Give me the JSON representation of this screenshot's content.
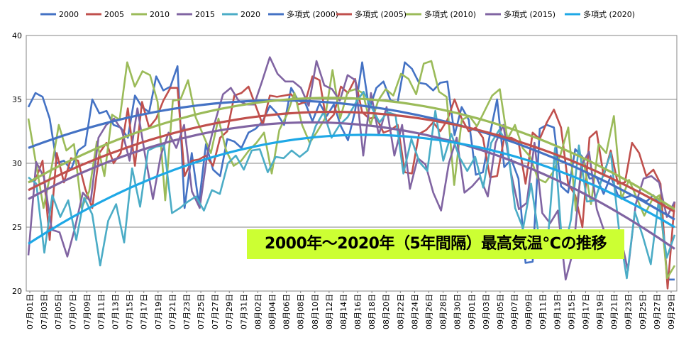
{
  "chart_data": {
    "type": "line",
    "title": "2000年～2020年（5年間隔）最高気温℃の推移",
    "ylim": [
      20,
      40
    ],
    "yticks": [
      "20",
      "25",
      "30",
      "35",
      "40"
    ],
    "grid": true,
    "legend_position": "top",
    "xlabels": [
      "07月01日",
      "07月03日",
      "07月05日",
      "07月07日",
      "07月09日",
      "07月11日",
      "07月13日",
      "07月15日",
      "07月17日",
      "07月19日",
      "07月21日",
      "07月23日",
      "07月25日",
      "07月27日",
      "07月29日",
      "07月31日",
      "08月02日",
      "08月04日",
      "08月06日",
      "08月08日",
      "08月10日",
      "08月12日",
      "08月14日",
      "08月16日",
      "08月18日",
      "08月20日",
      "08月22日",
      "08月24日",
      "08月26日",
      "08月28日",
      "08月30日",
      "09月01日",
      "09月03日",
      "09月05日",
      "09月07日",
      "09月09日",
      "09月11日",
      "09月13日",
      "09月15日",
      "09月17日",
      "09月19日",
      "09月21日",
      "09月23日",
      "09月25日",
      "09月27日",
      "09月29日"
    ],
    "series": [
      {
        "name": "2000",
        "color": "#4472C4",
        "values": [
          34.4,
          35.5,
          35.2,
          33.5,
          30.0,
          30.2,
          29.5,
          31.0,
          31.4,
          35.0,
          33.9,
          34.1,
          33.0,
          32.8,
          32.0,
          35.3,
          34.4,
          34.0,
          36.8,
          35.7,
          36.0,
          37.6,
          26.5,
          30.8,
          26.8,
          31.5,
          29.5,
          29.0,
          31.9,
          31.7,
          31.2,
          32.4,
          32.7,
          33.3,
          34.5,
          33.9,
          33.0,
          35.9,
          34.9,
          34.7,
          33.3,
          34.7,
          33.7,
          34.6,
          32.9,
          31.8,
          34.1,
          37.9,
          34.2,
          35.9,
          36.4,
          34.9,
          34.8,
          37.9,
          37.4,
          36.3,
          36.2,
          35.7,
          36.3,
          36.4,
          32.2,
          34.4,
          33.4,
          29.1,
          29.3,
          32.3,
          35.0,
          29.7,
          30.3,
          28.8,
          22.2,
          22.3,
          32.7,
          33.0,
          32.8,
          28.2,
          27.7,
          31.1,
          30.5,
          28.8,
          28.9,
          27.6,
          29.0,
          27.5,
          27.3,
          27.5,
          27.3,
          27.0,
          27.5,
          26.6,
          20.9,
          20.9
        ]
      },
      {
        "name": "2005",
        "color": "#C0504D",
        "values": [
          28.5,
          28.7,
          30.2,
          24.0,
          30.8,
          28.5,
          30.4,
          30.2,
          28.0,
          26.5,
          30.8,
          31.6,
          30.0,
          30.8,
          34.3,
          29.8,
          34.8,
          32.8,
          33.5,
          34.9,
          35.9,
          35.9,
          29.0,
          30.2,
          30.3,
          30.6,
          29.8,
          32.0,
          32.5,
          35.3,
          35.5,
          36.0,
          34.5,
          33.0,
          35.3,
          35.2,
          35.3,
          35.4,
          34.6,
          34.8,
          36.8,
          36.5,
          33.2,
          33.8,
          36.0,
          35.5,
          36.6,
          34.0,
          33.5,
          33.6,
          32.4,
          32.6,
          33.0,
          29.3,
          29.2,
          32.3,
          32.6,
          33.2,
          32.5,
          33.4,
          35.0,
          33.5,
          32.5,
          32.8,
          32.0,
          28.9,
          29.0,
          32.0,
          32.0,
          31.7,
          28.4,
          32.4,
          31.9,
          33.2,
          34.2,
          32.8,
          28.4,
          27.5,
          25.0,
          32.0,
          32.5,
          29.0,
          31.0,
          28.4,
          28.5,
          31.6,
          30.8,
          29.0,
          29.5,
          28.4,
          20.2,
          27.0
        ]
      },
      {
        "name": "2010",
        "color": "#9BBB59",
        "values": [
          33.5,
          30.0,
          26.5,
          29.5,
          33.0,
          31.0,
          31.5,
          26.5,
          27.8,
          31.7,
          29.0,
          33.8,
          33.4,
          37.9,
          36.0,
          37.2,
          36.9,
          34.8,
          27.1,
          34.9,
          35.0,
          36.5,
          33.6,
          32.2,
          30.8,
          33.5,
          31.0,
          29.8,
          30.2,
          31.0,
          31.6,
          32.4,
          29.2,
          32.6,
          33.8,
          35.5,
          33.0,
          31.6,
          32.5,
          33.5,
          37.3,
          33.5,
          35.6,
          35.8,
          35.5,
          33.0,
          34.9,
          35.8,
          35.3,
          37.0,
          36.6,
          35.4,
          37.8,
          38.0,
          35.6,
          35.2,
          28.3,
          33.4,
          33.7,
          32.9,
          34.1,
          35.3,
          35.8,
          31.9,
          33.0,
          31.2,
          30.5,
          28.8,
          28.5,
          29.3,
          30.7,
          32.8,
          26.3,
          30.3,
          26.8,
          31.5,
          30.8,
          33.7,
          27.2,
          28.7,
          27.3,
          25.9,
          27.1,
          27.5,
          21.0,
          22.0
        ]
      },
      {
        "name": "2015",
        "color": "#8064A2",
        "values": [
          22.8,
          30.1,
          28.9,
          24.8,
          24.6,
          22.7,
          25.0,
          27.7,
          27.0,
          32.0,
          33.0,
          33.5,
          32.6,
          30.2,
          34.3,
          30.6,
          27.2,
          30.6,
          32.4,
          31.2,
          33.0,
          27.8,
          26.5,
          30.8,
          33.3,
          35.4,
          35.9,
          34.9,
          34.6,
          34.6,
          36.4,
          38.3,
          37.0,
          36.4,
          36.4,
          35.9,
          34.5,
          38.0,
          36.1,
          35.8,
          34.9,
          36.9,
          36.5,
          30.6,
          35.5,
          32.2,
          34.4,
          30.6,
          33.0,
          28.0,
          30.4,
          29.9,
          27.7,
          26.3,
          30.0,
          32.0,
          27.7,
          28.2,
          28.9,
          27.4,
          31.6,
          33.0,
          29.2,
          26.4,
          26.9,
          31.6,
          26.1,
          25.3,
          26.3,
          20.9,
          23.2,
          29.8,
          30.9,
          26.4,
          24.6,
          22.7,
          24.4,
          21.6,
          26.8,
          28.8,
          29.0,
          28.5,
          25.8,
          27.0
        ]
      },
      {
        "name": "2020",
        "color": "#4BACC6",
        "values": [
          28.9,
          28.4,
          23.0,
          27.5,
          25.8,
          27.1,
          24.0,
          27.3,
          26.0,
          22.0,
          25.5,
          26.8,
          23.8,
          29.6,
          26.6,
          31.0,
          31.3,
          31.4,
          26.1,
          26.5,
          27.0,
          27.4,
          26.3,
          27.9,
          27.6,
          30.0,
          30.6,
          29.5,
          31.0,
          31.1,
          29.3,
          30.5,
          30.4,
          31.0,
          30.5,
          31.0,
          32.9,
          34.0,
          32.0,
          33.0,
          33.6,
          34.7,
          35.6,
          34.4,
          33.2,
          34.0,
          33.8,
          29.2,
          31.9,
          30.1,
          29.4,
          34.1,
          30.2,
          32.3,
          30.5,
          29.4,
          30.5,
          28.1,
          31.6,
          32.6,
          31.6,
          26.5,
          24.9,
          28.4,
          24.2,
          23.1,
          31.2,
          22.7,
          25.6,
          31.4,
          27.0,
          27.1,
          29.0,
          30.8,
          24.9,
          21.0,
          26.2,
          24.3,
          22.1,
          27.1,
          22.6,
          24.4
        ]
      },
      {
        "name": "多項式 (2000)",
        "color": "#4472C4",
        "trend_start": 31.2,
        "trend_peak": 34.9,
        "trend_end": 25.6,
        "trend_peak_pos": 0.36
      },
      {
        "name": "多項式 (2005)",
        "color": "#C0504D",
        "trend_start": 27.9,
        "trend_peak": 34.0,
        "trend_end": 26.2,
        "trend_peak_pos": 0.5
      },
      {
        "name": "多項式 (2010)",
        "color": "#9BBB59",
        "trend_start": 28.5,
        "trend_peak": 35.1,
        "trend_end": 26.4,
        "trend_peak_pos": 0.49
      },
      {
        "name": "多項式 (2015)",
        "color": "#8064A2",
        "trend_start": 27.2,
        "trend_peak": 33.2,
        "trend_end": 23.3,
        "trend_peak_pos": 0.44
      },
      {
        "name": "多項式 (2020)",
        "color": "#1EA8E6",
        "trend_start": 23.7,
        "trend_peak": 32.2,
        "trend_end": 25.0,
        "trend_peak_pos": 0.55
      }
    ]
  }
}
